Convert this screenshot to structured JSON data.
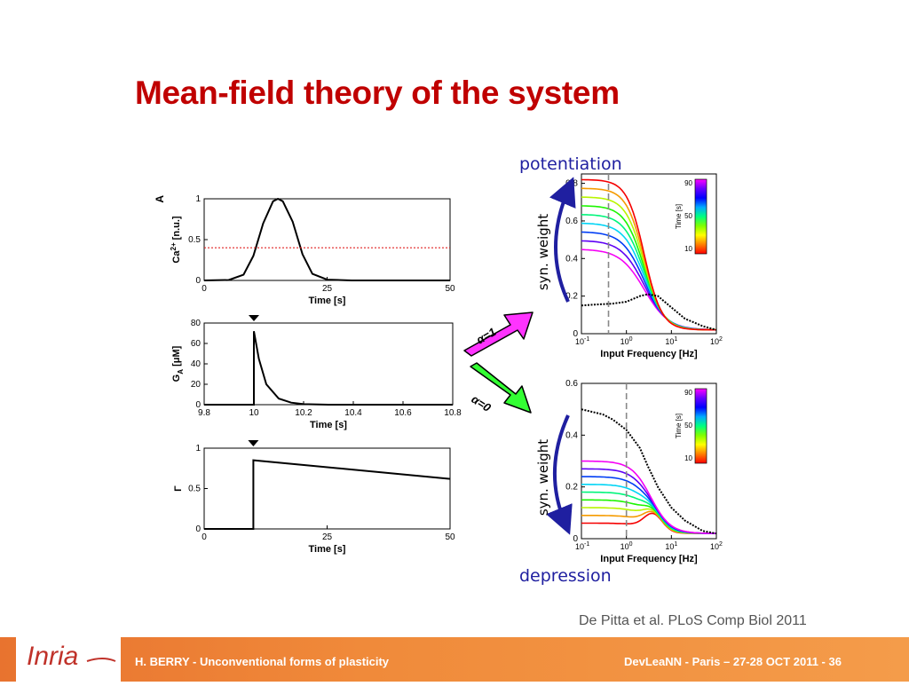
{
  "slide": {
    "title": "Mean-field theory of the system",
    "citation": "De Pitta et al. PLoS Comp Biol 2011",
    "footer_left": "H. BERRY - Unconventional forms of plasticity",
    "footer_right": "DevLeaNN - Paris – 27-28 OCT 2011 - 36",
    "logo_text": "Inria",
    "potentiation_label": "potentiation",
    "depression_label": "depression",
    "syn_weight_label": "syn. weight",
    "arrow_top_label": "α=1",
    "arrow_bottom_label": "α=0",
    "colors": {
      "title": "#c00000",
      "annotation": "#1f1fa0",
      "footer": "#f08a3a",
      "arrow_top": "#ff33ff",
      "arrow_bottom": "#33ff33"
    }
  },
  "chart_data": [
    {
      "type": "line",
      "panel_letter": "A",
      "xlabel": "Time [s]",
      "ylabel": "Ca2+ [n.u.]",
      "xlim": [
        0,
        50
      ],
      "ylim": [
        0,
        1
      ],
      "xticks": [
        "0",
        "25",
        "50"
      ],
      "yticks": [
        "0",
        "0.5",
        "1"
      ],
      "threshold": 0.4,
      "series": [
        {
          "x": [
            0,
            5,
            8,
            10,
            12,
            14,
            15,
            16,
            18,
            20,
            22,
            25,
            30,
            35,
            40,
            50
          ],
          "y": [
            0,
            0.005,
            0.07,
            0.3,
            0.7,
            0.97,
            1.0,
            0.97,
            0.72,
            0.32,
            0.08,
            0.01,
            0,
            0,
            0,
            0
          ]
        }
      ]
    },
    {
      "type": "line",
      "xlabel": "Time [s]",
      "ylabel": "G_A [μM]",
      "xlim": [
        9.8,
        10.8
      ],
      "ylim": [
        0,
        80
      ],
      "xticks": [
        "9.8",
        "10",
        "10.2",
        "10.4",
        "10.6",
        "10.8"
      ],
      "yticks": [
        "0",
        "20",
        "40",
        "60",
        "80"
      ],
      "series": [
        {
          "x": [
            9.8,
            10,
            10,
            10.02,
            10.05,
            10.1,
            10.15,
            10.2,
            10.3,
            10.4,
            10.6,
            10.8
          ],
          "y": [
            0,
            0,
            72,
            45,
            20,
            6,
            2,
            0.5,
            0,
            0,
            0,
            0
          ]
        }
      ]
    },
    {
      "type": "line",
      "xlabel": "Time [s]",
      "ylabel": "Γ",
      "xlim": [
        0,
        50
      ],
      "ylim": [
        0,
        1
      ],
      "xticks": [
        "0",
        "25",
        "50"
      ],
      "yticks": [
        "0",
        "0.5",
        "1"
      ],
      "series": [
        {
          "x": [
            0,
            10,
            10,
            50
          ],
          "y": [
            0,
            0,
            0.85,
            0.62
          ]
        }
      ]
    },
    {
      "type": "line",
      "xlabel": "Input Frequency [Hz]",
      "xscale": "log",
      "xlim": [
        0.1,
        100
      ],
      "ylim": [
        0,
        0.85
      ],
      "xticks": [
        "10-1",
        "100",
        "101",
        "102"
      ],
      "yticks": [
        "0",
        "0.2",
        "0.4",
        "0.6",
        "0.8"
      ],
      "colorbar": {
        "label": "Time [s]",
        "ticks": [
          "10",
          "50",
          "90"
        ]
      },
      "dashed_x": 0.4,
      "black_curve": {
        "x": [
          0.1,
          0.2,
          0.5,
          1,
          2,
          3,
          5,
          10,
          20,
          50,
          100
        ],
        "y": [
          0.15,
          0.155,
          0.16,
          0.17,
          0.2,
          0.21,
          0.2,
          0.14,
          0.08,
          0.04,
          0.02
        ]
      },
      "curve_family": {
        "n": 9,
        "start_low": 0.45,
        "start_high": 0.82,
        "plateau_low": 0.18,
        "note": "one curve per stimulation time"
      }
    },
    {
      "type": "line",
      "xlabel": "Input Frequency [Hz]",
      "xscale": "log",
      "xlim": [
        0.1,
        100
      ],
      "ylim": [
        0,
        0.6
      ],
      "xticks": [
        "10-1",
        "100",
        "101",
        "102"
      ],
      "yticks": [
        "0",
        "0.2",
        "0.4",
        "0.6"
      ],
      "colorbar": {
        "label": "Time [s]",
        "ticks": [
          "10",
          "50",
          "90"
        ]
      },
      "dashed_x": 1,
      "black_curve": {
        "x": [
          0.1,
          0.3,
          0.5,
          1,
          2,
          3,
          5,
          10,
          20,
          50,
          100
        ],
        "y": [
          0.5,
          0.48,
          0.46,
          0.42,
          0.35,
          0.28,
          0.2,
          0.12,
          0.07,
          0.03,
          0.02
        ]
      },
      "curve_family": {
        "n": 9,
        "start_low": 0.06,
        "start_high": 0.3
      }
    }
  ]
}
